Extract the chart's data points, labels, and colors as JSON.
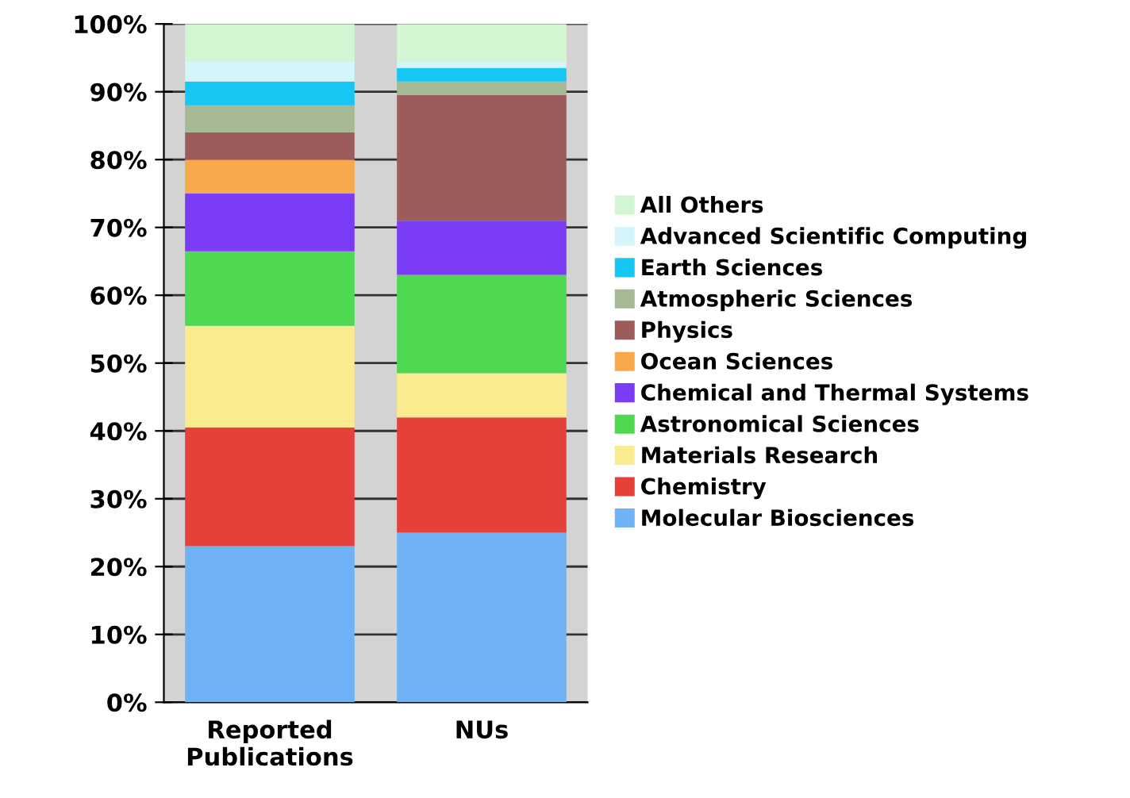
{
  "chart_data": {
    "type": "bar",
    "stacked": true,
    "categories": [
      "Reported\nPublications",
      "NUs"
    ],
    "series": [
      {
        "name": "Molecular Biosciences",
        "color": "#6fb2f5",
        "values": [
          23,
          25
        ]
      },
      {
        "name": "Chemistry",
        "color": "#e5413a",
        "values": [
          17.5,
          17
        ]
      },
      {
        "name": "Materials Research",
        "color": "#fbeb8f",
        "values": [
          15,
          6.5
        ]
      },
      {
        "name": "Astronomical Sciences",
        "color": "#4fd852",
        "values": [
          11,
          14.5
        ]
      },
      {
        "name": "Chemical and Thermal Systems",
        "color": "#7a3cf5",
        "values": [
          8.5,
          8
        ]
      },
      {
        "name": "Ocean Sciences",
        "color": "#f7a94b",
        "values": [
          5,
          0
        ]
      },
      {
        "name": "Physics",
        "color": "#9c5c5c",
        "values": [
          4,
          18.5
        ]
      },
      {
        "name": "Atmospheric Sciences",
        "color": "#a6b894",
        "values": [
          4,
          2
        ]
      },
      {
        "name": "Earth Sciences",
        "color": "#17c6f2",
        "values": [
          3.5,
          2
        ]
      },
      {
        "name": "Advanced Scientific Computing",
        "color": "#d4f6fa",
        "values": [
          3,
          1
        ]
      },
      {
        "name": "All Others",
        "color": "#d3f7d3",
        "values": [
          5.5,
          5.5
        ]
      }
    ],
    "ylim": [
      0,
      100
    ],
    "yticks": [
      {
        "value": 0,
        "label": "0%"
      },
      {
        "value": 10,
        "label": "10%"
      },
      {
        "value": 20,
        "label": "20%"
      },
      {
        "value": 30,
        "label": "30%"
      },
      {
        "value": 40,
        "label": "40%"
      },
      {
        "value": 50,
        "label": "50%"
      },
      {
        "value": 60,
        "label": "60%"
      },
      {
        "value": 70,
        "label": "70%"
      },
      {
        "value": 80,
        "label": "80%"
      },
      {
        "value": 90,
        "label": "90%"
      },
      {
        "value": 100,
        "label": "100%"
      }
    ],
    "grid": "y",
    "legend": "right"
  }
}
